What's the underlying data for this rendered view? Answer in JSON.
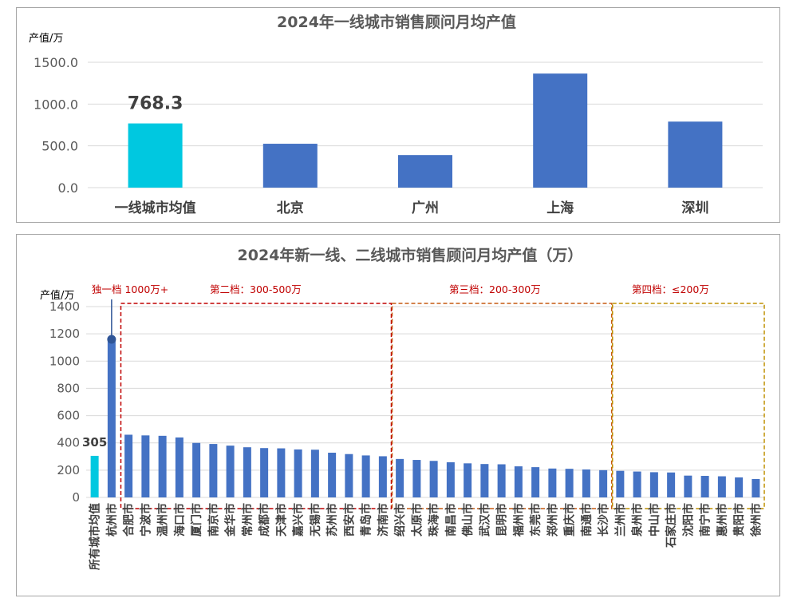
{
  "chart_data": [
    {
      "type": "bar",
      "title": "2024年一线城市销售顾问月均产值",
      "ylabel": "产值/万",
      "ylim": [
        0,
        1500
      ],
      "yticks": [
        "0.0",
        "500.0",
        "1000.0",
        "1500.0"
      ],
      "categories": [
        "一线城市均值",
        "北京",
        "广州",
        "上海",
        "深圳"
      ],
      "values": [
        768.3,
        525,
        390,
        1365,
        790
      ],
      "highlight_label": "768.3",
      "colors": {
        "average": "#00c8e0",
        "bar": "#4472c4"
      },
      "grid": true
    },
    {
      "type": "bar",
      "title": "2024年新一线、二线城市销售顾问月均产值（万）",
      "ylabel": "产值/万",
      "ylim": [
        0,
        1400
      ],
      "yticks": [
        "0",
        "200",
        "400",
        "600",
        "800",
        "1000",
        "1200",
        "1400"
      ],
      "categories": [
        "所有城市均值",
        "杭州市",
        "合肥市",
        "宁波市",
        "温州市",
        "海口市",
        "厦门市",
        "南京市",
        "金华市",
        "常州市",
        "成都市",
        "天津市",
        "嘉兴市",
        "无锡市",
        "苏州市",
        "西安市",
        "青岛市",
        "济南市",
        "绍兴市",
        "太原市",
        "珠海市",
        "南昌市",
        "佛山市",
        "武汉市",
        "昆明市",
        "福州市",
        "东莞市",
        "郑州市",
        "重庆市",
        "南通市",
        "长沙市",
        "兰州市",
        "泉州市",
        "中山市",
        "石家庄市",
        "沈阳市",
        "南宁市",
        "惠州市",
        "贵阳市",
        "徐州市"
      ],
      "values": [
        305,
        1160,
        460,
        455,
        452,
        440,
        400,
        392,
        380,
        368,
        362,
        360,
        352,
        350,
        328,
        318,
        308,
        302,
        282,
        275,
        268,
        258,
        250,
        245,
        243,
        228,
        222,
        212,
        210,
        205,
        200,
        195,
        190,
        185,
        183,
        160,
        158,
        155,
        147,
        135
      ],
      "highlight_label": "305",
      "colors": {
        "average": "#00c8e0",
        "bar": "#4472c4",
        "tier2": "#c00000",
        "tier3": "#c55a11",
        "tier4": "#bf9000"
      },
      "tiers": [
        {
          "label": "独一档 1000万+"
        },
        {
          "label": "第二档：300-500万"
        },
        {
          "label": "第三档：200-300万"
        },
        {
          "label": "第四档：≤200万"
        }
      ],
      "grid": true
    }
  ]
}
